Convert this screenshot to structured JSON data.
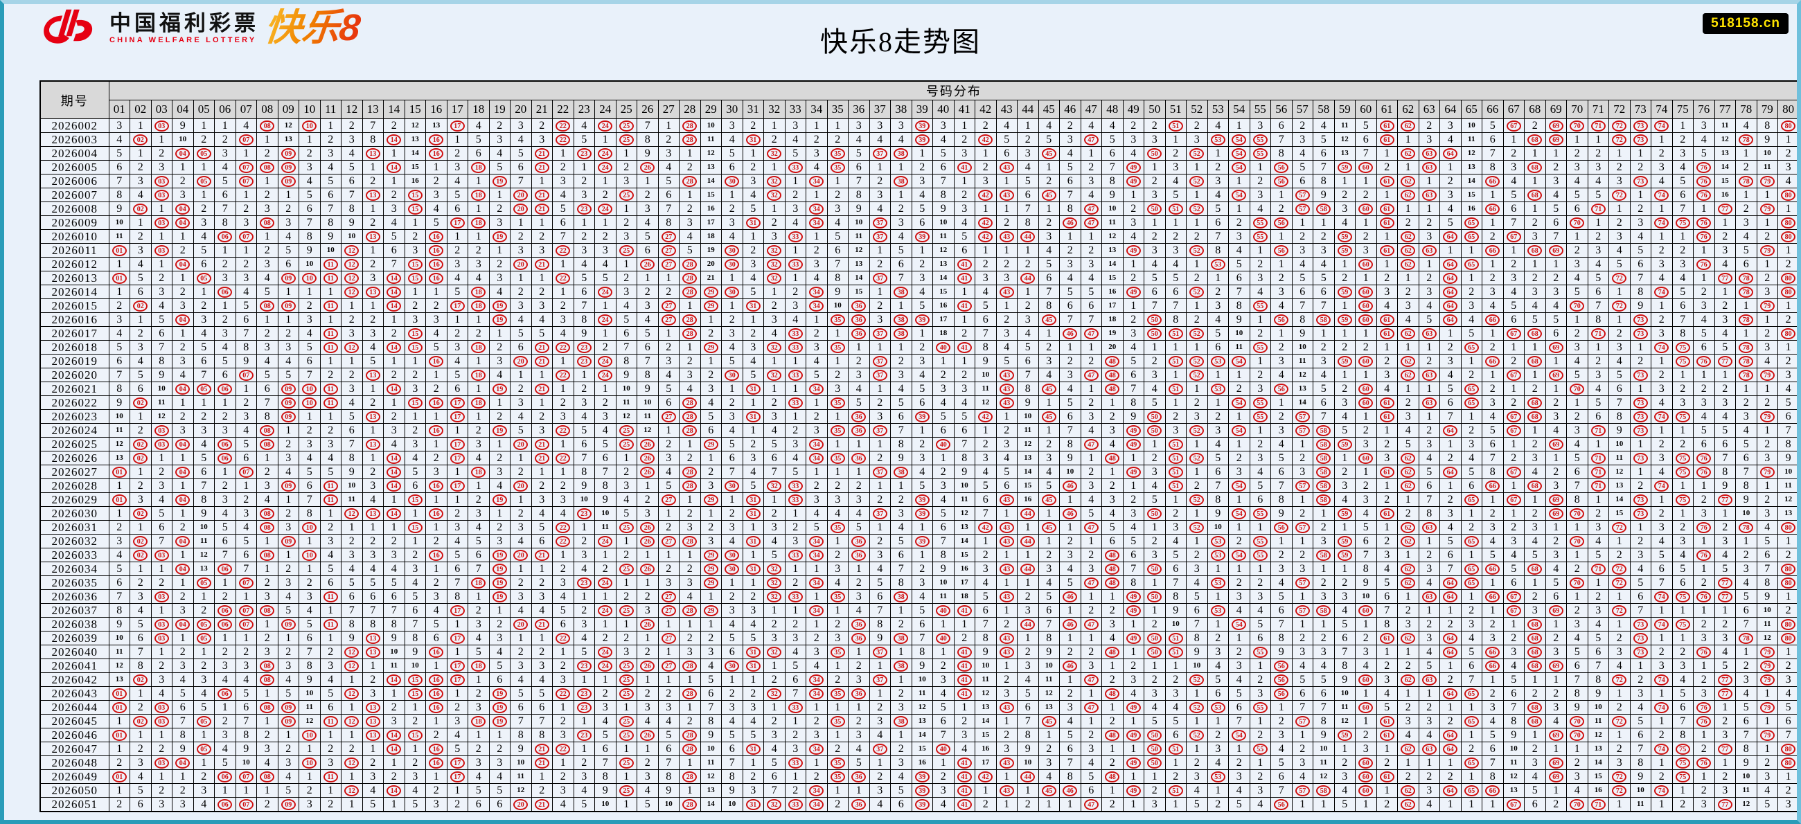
{
  "page": {
    "title": "快乐8走势图",
    "badge": "518158.cn"
  },
  "logo": {
    "cn": "中国福利彩票",
    "en": "CHINA WELFARE LOTTERY",
    "product": "快乐8"
  },
  "colors": {
    "accent_red": "#d01010",
    "logo_red": "#e60012",
    "logo_orange": "#f08300",
    "badge_bg": "#000000",
    "badge_text": "#ffe400",
    "header_bg": "#d9d9d9",
    "cell_bg": "#eef3fa",
    "page_bg": "#e9f1fa",
    "frame_light": "#a6d4e7",
    "frame_dark": "#2a9cb8"
  },
  "table": {
    "period_header": "期号",
    "group_header": "号码分布",
    "columns": [
      "01",
      "02",
      "03",
      "04",
      "05",
      "06",
      "07",
      "08",
      "09",
      "10",
      "11",
      "12",
      "13",
      "14",
      "15",
      "16",
      "17",
      "18",
      "19",
      "20",
      "21",
      "22",
      "23",
      "24",
      "25",
      "26",
      "27",
      "28",
      "29",
      "30",
      "31",
      "32",
      "33",
      "34",
      "35",
      "36",
      "37",
      "38",
      "39",
      "40",
      "41",
      "42",
      "43",
      "44",
      "45",
      "46",
      "47",
      "48",
      "49",
      "50",
      "51",
      "52",
      "53",
      "54",
      "55",
      "56",
      "57",
      "58",
      "59",
      "60",
      "61",
      "62",
      "63",
      "64",
      "65",
      "66",
      "67",
      "68",
      "69",
      "70",
      "71",
      "72",
      "73",
      "74",
      "75",
      "76",
      "77",
      "78",
      "79",
      "80"
    ],
    "initial_omissions": [
      3,
      1,
      0,
      9,
      1,
      1,
      4,
      0,
      12,
      0,
      1,
      2,
      7,
      2,
      12,
      13,
      0,
      4,
      2,
      3,
      2,
      0,
      4,
      0,
      0,
      7,
      1,
      0,
      10,
      3,
      2,
      1,
      3,
      1,
      1,
      3,
      3,
      3,
      0,
      3,
      1,
      2,
      4,
      1,
      4,
      2,
      4,
      4,
      2,
      2,
      0,
      2,
      4,
      1,
      3,
      6,
      2,
      4,
      11,
      5,
      0,
      0,
      2,
      3,
      10,
      5,
      0,
      2,
      0,
      0,
      0,
      0,
      0,
      0,
      1,
      3,
      11,
      4,
      8,
      0
    ],
    "rows": [
      {
        "period": "2026002",
        "drawn": [
          3,
          8,
          10,
          17,
          22,
          24,
          25,
          28,
          39,
          51,
          61,
          62,
          67,
          69,
          70,
          71,
          72,
          73,
          74,
          80
        ]
      },
      {
        "period": "2026003",
        "drawn": [
          2,
          7,
          14,
          16,
          22,
          25,
          28,
          31,
          39,
          42,
          47,
          53,
          54,
          55,
          61,
          68,
          69,
          72,
          73,
          78
        ]
      },
      {
        "period": "2026004",
        "drawn": [
          4,
          5,
          9,
          13,
          16,
          21,
          23,
          24,
          32,
          35,
          37,
          38,
          45,
          50,
          52,
          54,
          55,
          62,
          63,
          64
        ]
      },
      {
        "period": "2026005",
        "drawn": [
          7,
          8,
          9,
          14,
          18,
          21,
          24,
          26,
          33,
          35,
          41,
          43,
          49,
          54,
          56,
          59,
          60,
          63,
          68,
          76
        ]
      },
      {
        "period": "2026006",
        "drawn": [
          3,
          5,
          7,
          9,
          19,
          28,
          30,
          32,
          34,
          38,
          49,
          52,
          56,
          61,
          62,
          66,
          73,
          76,
          78,
          79
        ]
      },
      {
        "period": "2026007",
        "drawn": [
          3,
          13,
          15,
          18,
          20,
          21,
          25,
          32,
          42,
          43,
          45,
          54,
          57,
          62,
          63,
          68,
          72,
          74,
          76,
          80
        ]
      },
      {
        "period": "2026008",
        "drawn": [
          2,
          4,
          15,
          20,
          21,
          23,
          24,
          34,
          47,
          50,
          51,
          52,
          57,
          58,
          60,
          61,
          66,
          71,
          77,
          79
        ]
      },
      {
        "period": "2026009",
        "drawn": [
          3,
          4,
          8,
          17,
          18,
          31,
          34,
          37,
          42,
          46,
          47,
          55,
          56,
          61,
          65,
          70,
          74,
          75,
          76,
          80
        ]
      },
      {
        "period": "2026010",
        "drawn": [
          6,
          7,
          13,
          16,
          19,
          27,
          33,
          37,
          39,
          42,
          43,
          44,
          55,
          59,
          62,
          64,
          65,
          67,
          76,
          80
        ]
      },
      {
        "period": "2026011",
        "drawn": [
          1,
          3,
          12,
          16,
          22,
          25,
          27,
          30,
          32,
          49,
          52,
          56,
          59,
          61,
          62,
          63,
          66,
          68,
          69,
          79
        ]
      },
      {
        "period": "2026012",
        "drawn": [
          4,
          11,
          12,
          15,
          16,
          20,
          21,
          26,
          27,
          28,
          30,
          32,
          33,
          41,
          53,
          60,
          62,
          64,
          65,
          76
        ]
      },
      {
        "period": "2026013",
        "drawn": [
          1,
          5,
          9,
          10,
          11,
          12,
          14,
          15,
          16,
          22,
          28,
          32,
          37,
          41,
          44,
          64,
          72,
          77,
          78,
          80
        ]
      },
      {
        "period": "2026014",
        "drawn": [
          6,
          12,
          13,
          14,
          18,
          24,
          28,
          29,
          30,
          34,
          38,
          43,
          49,
          52,
          59,
          60,
          64,
          74,
          78,
          80
        ]
      },
      {
        "period": "2026015",
        "drawn": [
          2,
          8,
          9,
          11,
          14,
          17,
          18,
          19,
          27,
          29,
          31,
          34,
          36,
          41,
          55,
          60,
          64,
          70,
          72,
          79
        ]
      },
      {
        "period": "2026016",
        "drawn": [
          4,
          19,
          24,
          27,
          28,
          35,
          36,
          38,
          39,
          45,
          50,
          56,
          58,
          59,
          60,
          61,
          64,
          66,
          73,
          78
        ]
      },
      {
        "period": "2026017",
        "drawn": [
          11,
          15,
          28,
          33,
          36,
          37,
          38,
          46,
          47,
          50,
          51,
          52,
          61,
          62,
          63,
          67,
          68,
          71,
          73,
          80
        ]
      },
      {
        "period": "2026018",
        "drawn": [
          11,
          12,
          14,
          15,
          18,
          21,
          22,
          23,
          29,
          32,
          33,
          35,
          40,
          41,
          55,
          65,
          69,
          74,
          75,
          78
        ]
      },
      {
        "period": "2026019",
        "drawn": [
          16,
          20,
          21,
          23,
          24,
          37,
          48,
          51,
          52,
          53,
          54,
          59,
          60,
          62,
          66,
          68,
          75,
          76,
          77,
          78
        ]
      },
      {
        "period": "2026020",
        "drawn": [
          7,
          13,
          18,
          22,
          24,
          30,
          32,
          33,
          37,
          43,
          47,
          48,
          52,
          62,
          63,
          67,
          69,
          73,
          78,
          79
        ]
      },
      {
        "period": "2026021",
        "drawn": [
          4,
          5,
          6,
          9,
          10,
          11,
          14,
          19,
          21,
          31,
          34,
          43,
          45,
          48,
          51,
          53,
          56,
          60,
          65,
          70
        ]
      },
      {
        "period": "2026022",
        "drawn": [
          2,
          9,
          10,
          11,
          15,
          16,
          17,
          18,
          28,
          33,
          35,
          43,
          54,
          55,
          60,
          61,
          63,
          65,
          68,
          73
        ]
      },
      {
        "period": "2026023",
        "drawn": [
          9,
          13,
          17,
          27,
          28,
          31,
          36,
          39,
          42,
          45,
          50,
          55,
          57,
          61,
          67,
          68,
          73,
          74,
          75,
          79
        ]
      },
      {
        "period": "2026024",
        "drawn": [
          3,
          8,
          16,
          19,
          22,
          25,
          28,
          35,
          36,
          37,
          49,
          50,
          52,
          54,
          57,
          58,
          64,
          67,
          71,
          73
        ]
      },
      {
        "period": "2026025",
        "drawn": [
          2,
          3,
          4,
          6,
          8,
          13,
          17,
          20,
          21,
          25,
          26,
          29,
          34,
          40,
          47,
          49,
          51,
          58,
          59,
          69
        ]
      },
      {
        "period": "2026026",
        "drawn": [
          2,
          6,
          14,
          17,
          21,
          22,
          26,
          34,
          35,
          36,
          48,
          51,
          52,
          58,
          60,
          62,
          71,
          73,
          75,
          76
        ]
      },
      {
        "period": "2026027",
        "drawn": [
          1,
          4,
          7,
          14,
          18,
          26,
          28,
          37,
          38,
          49,
          51,
          58,
          61,
          62,
          64,
          67,
          71,
          75,
          76,
          79
        ]
      },
      {
        "period": "2026028",
        "drawn": [
          9,
          11,
          14,
          16,
          17,
          20,
          28,
          30,
          32,
          33,
          46,
          51,
          54,
          57,
          58,
          62,
          66,
          68,
          71,
          74
        ]
      },
      {
        "period": "2026029",
        "drawn": [
          1,
          4,
          11,
          15,
          19,
          27,
          29,
          31,
          33,
          39,
          43,
          45,
          52,
          58,
          65,
          67,
          69,
          73,
          75,
          77
        ]
      },
      {
        "period": "2026030",
        "drawn": [
          2,
          8,
          12,
          13,
          14,
          16,
          23,
          31,
          37,
          39,
          44,
          46,
          50,
          54,
          55,
          59,
          61,
          69,
          70,
          73
        ]
      },
      {
        "period": "2026031",
        "drawn": [
          8,
          10,
          15,
          22,
          25,
          26,
          35,
          42,
          43,
          45,
          47,
          52,
          56,
          57,
          62,
          63,
          72,
          76,
          78,
          80
        ]
      },
      {
        "period": "2026032",
        "drawn": [
          2,
          4,
          9,
          22,
          24,
          26,
          27,
          28,
          31,
          34,
          36,
          39,
          43,
          44,
          53,
          55,
          59,
          62,
          65,
          70
        ]
      },
      {
        "period": "2026033",
        "drawn": [
          2,
          3,
          8,
          10,
          16,
          19,
          20,
          21,
          29,
          30,
          33,
          34,
          36,
          48,
          53,
          54,
          55,
          58,
          59,
          76
        ]
      },
      {
        "period": "2026034",
        "drawn": [
          4,
          6,
          19,
          25,
          26,
          29,
          30,
          31,
          32,
          43,
          44,
          48,
          50,
          62,
          65,
          66,
          68,
          71,
          72,
          80
        ]
      },
      {
        "period": "2026035",
        "drawn": [
          5,
          7,
          18,
          19,
          23,
          24,
          29,
          32,
          34,
          47,
          48,
          53,
          57,
          62,
          64,
          65,
          70,
          72,
          77,
          80
        ]
      },
      {
        "period": "2026036",
        "drawn": [
          3,
          11,
          19,
          27,
          32,
          33,
          35,
          38,
          43,
          46,
          49,
          50,
          63,
          64,
          66,
          67,
          74,
          75,
          76,
          77
        ]
      },
      {
        "period": "2026037",
        "drawn": [
          6,
          7,
          8,
          17,
          24,
          25,
          27,
          28,
          29,
          34,
          40,
          41,
          49,
          53,
          57,
          58,
          60,
          67,
          69,
          72
        ]
      },
      {
        "period": "2026038",
        "drawn": [
          3,
          4,
          5,
          6,
          7,
          9,
          11,
          20,
          21,
          26,
          36,
          44,
          46,
          47,
          54,
          68,
          73,
          74,
          75,
          80
        ]
      },
      {
        "period": "2026039",
        "drawn": [
          3,
          5,
          13,
          17,
          22,
          27,
          36,
          38,
          40,
          43,
          49,
          50,
          51,
          61,
          62,
          64,
          68,
          73,
          78,
          80
        ]
      },
      {
        "period": "2026040",
        "drawn": [
          12,
          13,
          16,
          24,
          31,
          32,
          35,
          37,
          41,
          43,
          48,
          50,
          51,
          55,
          64,
          66,
          68,
          73,
          76,
          79
        ]
      },
      {
        "period": "2026041",
        "drawn": [
          8,
          12,
          17,
          18,
          23,
          24,
          25,
          26,
          27,
          28,
          30,
          31,
          38,
          41,
          46,
          56,
          66,
          68,
          69,
          79
        ]
      },
      {
        "period": "2026042",
        "drawn": [
          2,
          8,
          14,
          15,
          16,
          17,
          25,
          34,
          37,
          41,
          47,
          52,
          56,
          60,
          62,
          63,
          72,
          74,
          77,
          79
        ]
      },
      {
        "period": "2026043",
        "drawn": [
          1,
          6,
          12,
          15,
          16,
          19,
          22,
          23,
          25,
          28,
          32,
          34,
          35,
          36,
          41,
          48,
          56,
          64,
          65,
          77
        ]
      },
      {
        "period": "2026044",
        "drawn": [
          1,
          3,
          8,
          9,
          13,
          16,
          19,
          23,
          33,
          43,
          47,
          49,
          52,
          53,
          55,
          60,
          68,
          74,
          76,
          79
        ]
      },
      {
        "period": "2026045",
        "drawn": [
          2,
          3,
          5,
          9,
          11,
          12,
          13,
          18,
          19,
          25,
          35,
          38,
          45,
          57,
          61,
          65,
          68,
          70,
          72,
          76
        ]
      },
      {
        "period": "2026046",
        "drawn": [
          1,
          10,
          13,
          14,
          15,
          23,
          25,
          26,
          28,
          48,
          49,
          50,
          52,
          54,
          59,
          61,
          64,
          69,
          70,
          79
        ]
      },
      {
        "period": "2026047",
        "drawn": [
          5,
          14,
          16,
          21,
          22,
          28,
          31,
          34,
          37,
          40,
          50,
          51,
          55,
          62,
          63,
          64,
          74,
          75,
          77,
          80
        ]
      },
      {
        "period": "2026048",
        "drawn": [
          3,
          4,
          10,
          12,
          16,
          17,
          21,
          25,
          33,
          35,
          41,
          43,
          49,
          50,
          60,
          65,
          69,
          75,
          76,
          80
        ]
      },
      {
        "period": "2026049",
        "drawn": [
          1,
          6,
          7,
          8,
          11,
          17,
          28,
          35,
          36,
          39,
          41,
          42,
          44,
          48,
          53,
          60,
          61,
          69,
          72,
          75
        ]
      },
      {
        "period": "2026050",
        "drawn": [
          12,
          14,
          25,
          34,
          39,
          41,
          43,
          45,
          46,
          49,
          51,
          57,
          58,
          60,
          62,
          64,
          65,
          66,
          72,
          74
        ]
      },
      {
        "period": "2026051",
        "drawn": [
          6,
          7,
          9,
          20,
          21,
          28,
          31,
          32,
          33,
          34,
          36,
          39,
          41,
          47,
          56,
          62,
          67,
          70,
          71,
          77
        ]
      }
    ]
  }
}
